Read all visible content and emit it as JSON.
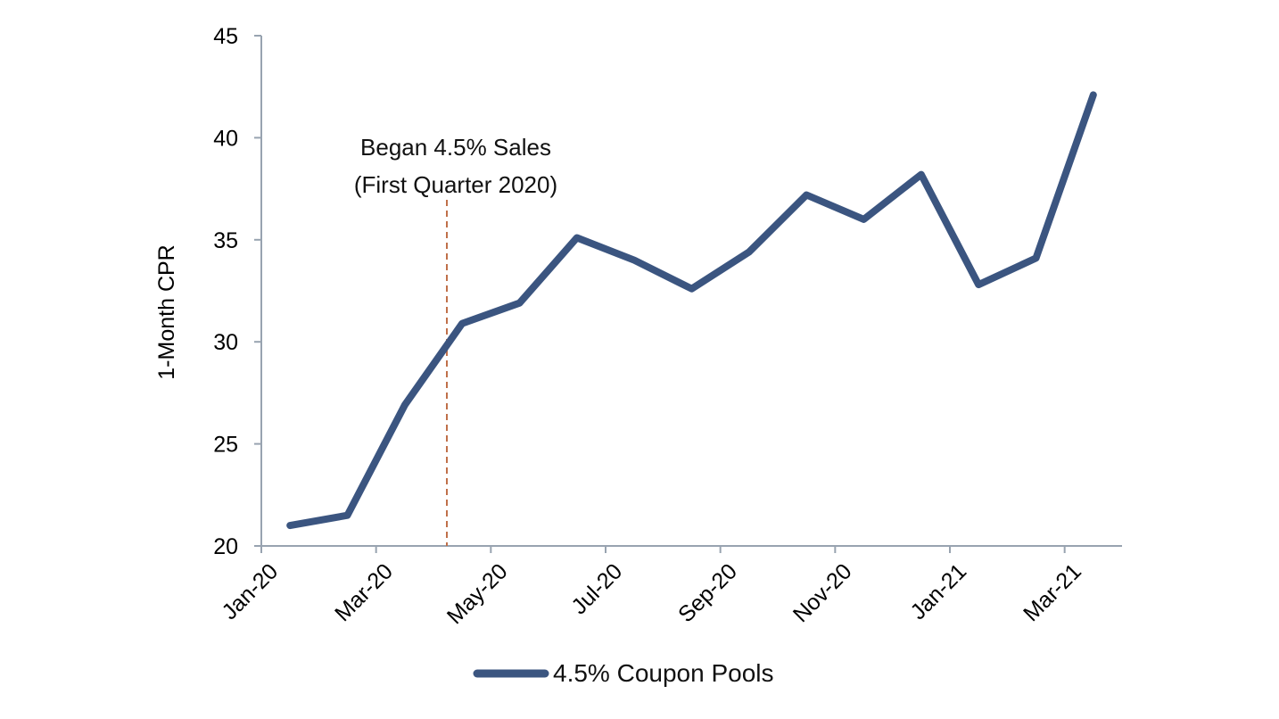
{
  "chart_data": {
    "type": "line",
    "title": "",
    "xlabel": "",
    "ylabel": "1-Month CPR",
    "ylim": [
      20,
      45
    ],
    "yticks": [
      20,
      25,
      30,
      35,
      40,
      45
    ],
    "grid": false,
    "legend_position": "bottom",
    "categories": [
      "Jan-20",
      "Feb-20",
      "Mar-20",
      "Apr-20",
      "May-20",
      "Jun-20",
      "Jul-20",
      "Aug-20",
      "Sep-20",
      "Oct-20",
      "Nov-20",
      "Dec-20",
      "Jan-21",
      "Feb-21",
      "Mar-21"
    ],
    "xtick_labels": [
      "Jan-20",
      "Mar-20",
      "May-20",
      "Jul-20",
      "Sep-20",
      "Nov-20",
      "Jan-21",
      "Mar-21"
    ],
    "series": [
      {
        "name": "4.5% Coupon Pools",
        "color": "#3b5580",
        "values": [
          21.0,
          21.5,
          26.9,
          30.9,
          31.9,
          35.1,
          34.0,
          32.6,
          34.4,
          37.2,
          36.0,
          38.2,
          32.8,
          34.1,
          42.1
        ]
      }
    ],
    "annotations": [
      {
        "text_line1": "Began 4.5% Sales",
        "text_line2": "(First Quarter 2020)",
        "x_position": "between Mar-20 and Apr-20",
        "style": "dashed vertical line",
        "color": "#c0704a"
      }
    ]
  },
  "colors": {
    "series": "#3b5580",
    "axis": "#98a3b0",
    "annotation_line": "#c0704a"
  }
}
